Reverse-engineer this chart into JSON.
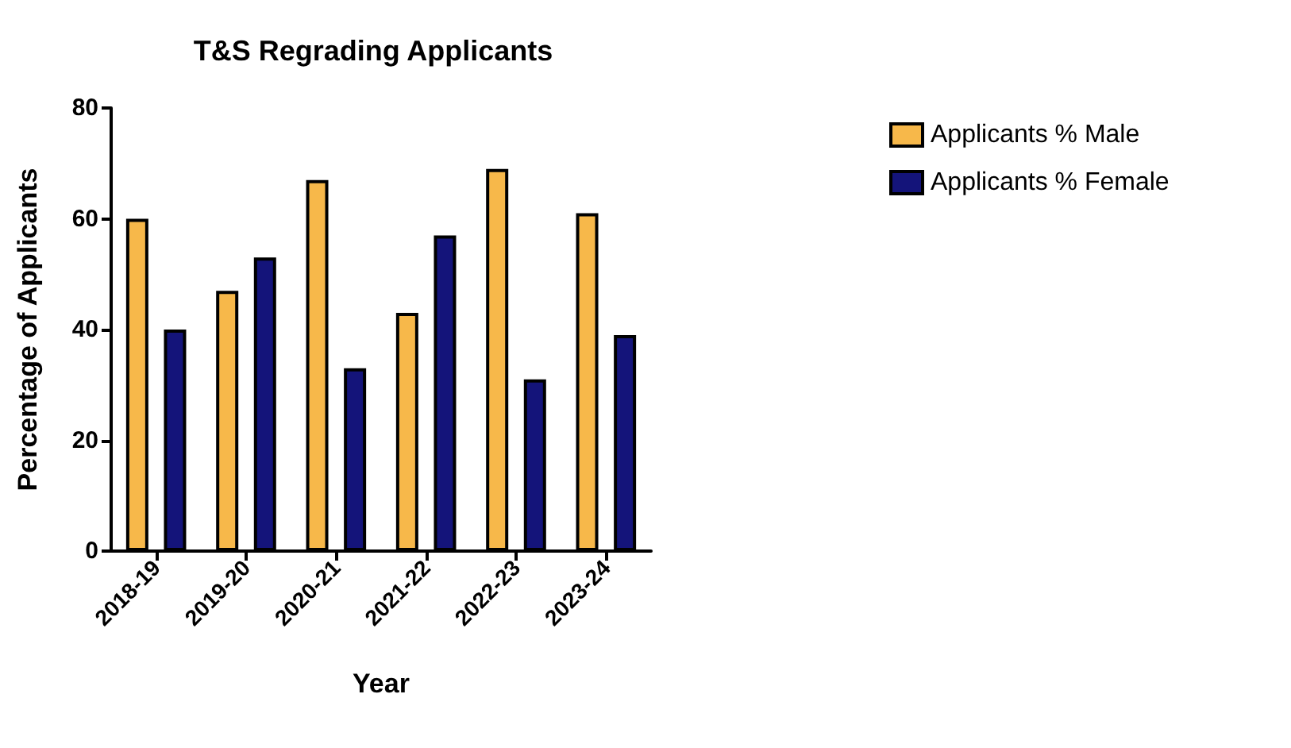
{
  "chart_data": {
    "type": "bar",
    "title": "T&S Regrading Applicants",
    "xlabel": "Year",
    "ylabel": "Percentage of Applicants",
    "categories": [
      "2018-19",
      "2019-20",
      "2020-21",
      "2021-22",
      "2022-23",
      "2023-24"
    ],
    "series": [
      {
        "name": "Applicants % Male",
        "color": "#f7b84a",
        "values": [
          60,
          47,
          67,
          43,
          69,
          61
        ]
      },
      {
        "name": "Applicants % Female",
        "color": "#14147a",
        "values": [
          40,
          53,
          33,
          57,
          31,
          39
        ]
      }
    ],
    "ylim": [
      0,
      80
    ],
    "yticks": [
      0,
      20,
      40,
      60,
      80
    ],
    "grid": false,
    "legend": "top right"
  }
}
